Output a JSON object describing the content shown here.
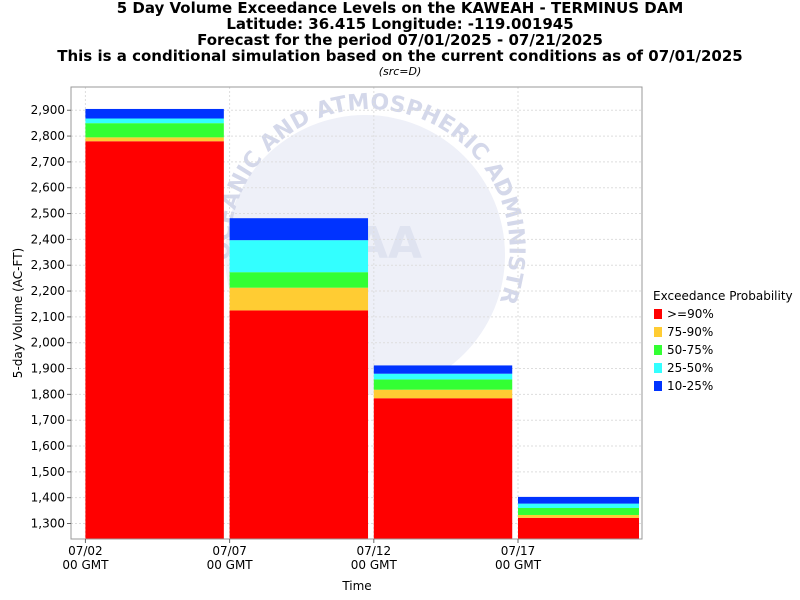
{
  "chart_data": {
    "type": "bar",
    "title_lines": [
      "5 Day Volume Exceedance Levels on the KAWEAH - TERMINUS DAM",
      "Latitude: 36.415 Longitude: -119.001945",
      "Forecast for the period 07/01/2025 - 07/21/2025",
      "This is a conditional simulation based on the current conditions as of 07/01/2025"
    ],
    "subtitle": "(src=D)",
    "xlabel": "Time",
    "ylabel": "5-day Volume (AC-FT)",
    "ylim": [
      1240,
      2990
    ],
    "yticks": [
      1300,
      1400,
      1500,
      1600,
      1700,
      1800,
      1900,
      2000,
      2100,
      2200,
      2300,
      2400,
      2500,
      2600,
      2700,
      2800,
      2900
    ],
    "ytick_labels": [
      "1,300",
      "1,400",
      "1,500",
      "1,600",
      "1,700",
      "1,800",
      "1,900",
      "2,000",
      "2,100",
      "2,200",
      "2,300",
      "2,400",
      "2,500",
      "2,600",
      "2,700",
      "2,800",
      "2,900"
    ],
    "xlim_days": [
      1.5,
      21.3
    ],
    "xticks": [
      {
        "day": 2,
        "line1": "07/02",
        "line2": "00 GMT"
      },
      {
        "day": 7,
        "line1": "07/07",
        "line2": "00 GMT"
      },
      {
        "day": 12,
        "line1": "07/12",
        "line2": "00 GMT"
      },
      {
        "day": 17,
        "line1": "07/17",
        "line2": "00 GMT"
      }
    ],
    "periods": [
      {
        "start_day": 2,
        "end_day": 6.8
      },
      {
        "start_day": 7,
        "end_day": 11.8
      },
      {
        "start_day": 12,
        "end_day": 16.8
      },
      {
        "start_day": 17,
        "end_day": 21.8
      }
    ],
    "series": [
      {
        "name": ">=90%",
        "color": "#ff0000",
        "values": [
          2780,
          2125,
          1785,
          1322
        ]
      },
      {
        "name": "75-90%",
        "color": "#ffcc33",
        "values": [
          2795,
          2213,
          1818,
          1333
        ]
      },
      {
        "name": "50-75%",
        "color": "#33ff33",
        "values": [
          2850,
          2273,
          1858,
          1360
        ]
      },
      {
        "name": "25-50%",
        "color": "#33ffff",
        "values": [
          2868,
          2397,
          1880,
          1377
        ]
      },
      {
        "name": "10-25%",
        "color": "#0033ff",
        "values": [
          2905,
          2482,
          1912,
          1403
        ]
      }
    ],
    "legend_title": "Exceedance Probability",
    "legend_position": "right",
    "grid": true
  },
  "watermark": {
    "text_top": "OCEANIC AND ATMOSPHERIC ADMINISTRATION",
    "text_center": "AA"
  }
}
